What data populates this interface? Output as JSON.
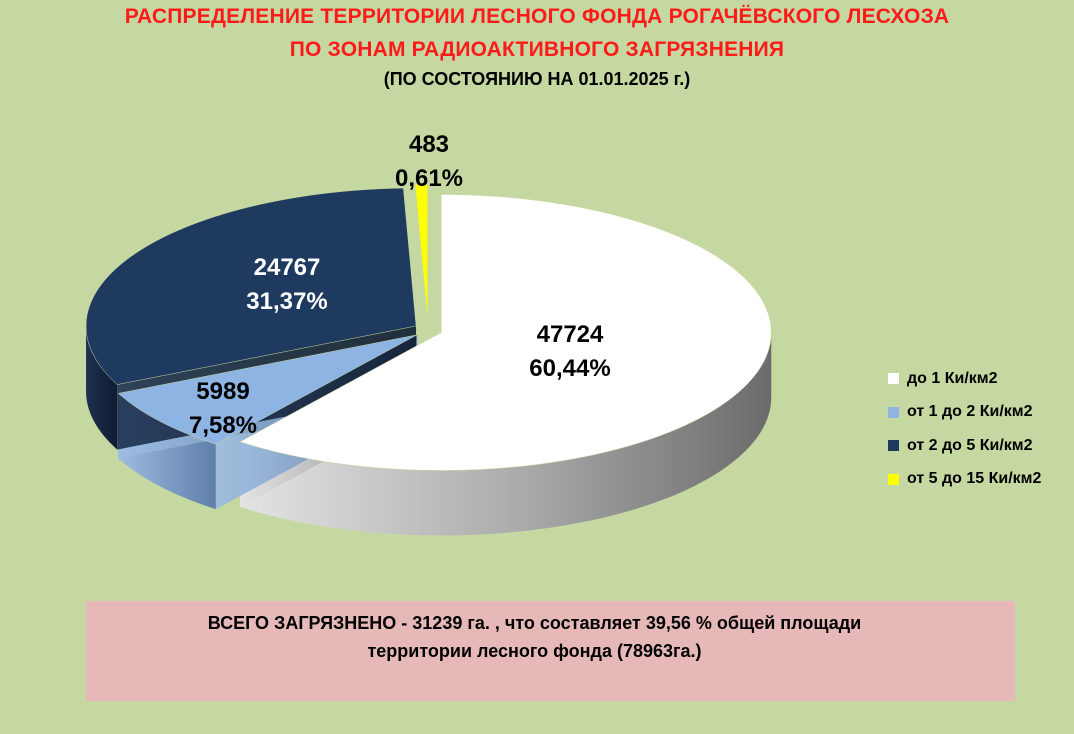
{
  "title_line1": "РАСПРЕДЕЛЕНИЕ ТЕРРИТОРИИ ЛЕСНОГО ФОНДА РОГАЧЁВСКОГО ЛЕСХОЗА",
  "title_line2": "ПО ЗОНАМ РАДИОАКТИВНОГО ЗАГРЯЗНЕНИЯ",
  "subtitle": "(ПО СОСТОЯНИЮ НА 01.01.2025 г.)",
  "summary": {
    "line1": "ВСЕГО ЗАГРЯЗНЕНО - 31239 га. , что составляет 39,56 %  общей площади",
    "line2": "территории  лесного фонда  (78963га.)"
  },
  "colors": {
    "background": "#c5d8a1",
    "title": "#ff1a1a",
    "summary_bg": "#e6b9b8"
  },
  "chart_data": {
    "type": "pie",
    "title": "РАСПРЕДЕЛЕНИЕ ТЕРРИТОРИИ ЛЕСНОГО ФОНДА РОГАЧЁВСКОГО ЛЕСХОЗА ПО ЗОНАМ РАДИОАКТИВНОГО ЗАГРЯЗНЕНИЯ",
    "style": "3d-exploded",
    "legend_position": "right",
    "slices": [
      {
        "label": "до 1 Ки/км2",
        "value": 47724,
        "percent": "60,44%",
        "value_label": "47724",
        "color": "#ffffff"
      },
      {
        "label": "от 1 до 2 Ки/км2",
        "value": 5989,
        "percent": "7,58%",
        "value_label": "5989",
        "color": "#8db4e2"
      },
      {
        "label": "от 2 до 5 Ки/км2",
        "value": 24767,
        "percent": "31,37%",
        "value_label": "24767",
        "color": "#1f3a5f"
      },
      {
        "label": "от 5 до 15 Ки/км2",
        "value": 483,
        "percent": "0,61%",
        "value_label": "483",
        "color": "#ffff00"
      }
    ]
  }
}
